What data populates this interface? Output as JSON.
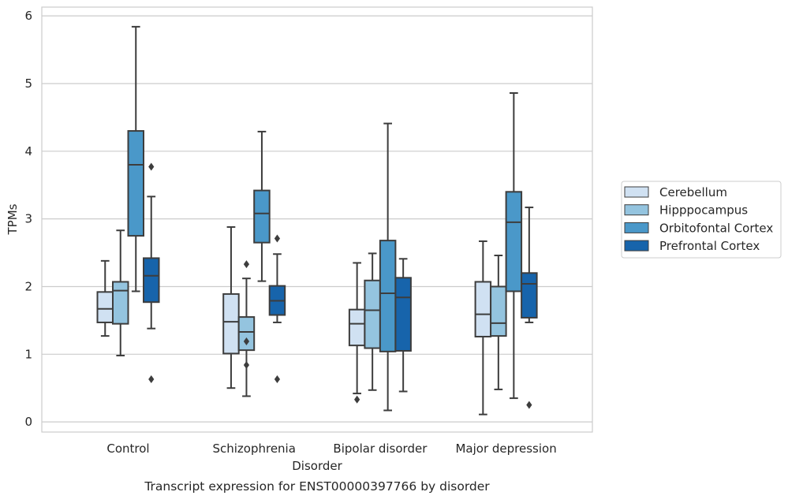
{
  "caption": "Transcript expression for ENST00000397766 by disorder",
  "chart_data": {
    "type": "box",
    "xlabel": "Disorder",
    "ylabel": "TPMs",
    "ylim": [
      -0.15,
      6.13
    ],
    "yticks": [
      0,
      1,
      2,
      3,
      4,
      5,
      6
    ],
    "grid": true,
    "legend_position": "right",
    "categories": [
      "Control",
      "Schizophrenia",
      "Bipolar disorder",
      "Major depression"
    ],
    "series": [
      {
        "name": "Cerebellum",
        "color": "#d0e1f2",
        "boxes": [
          {
            "whisker_low": 1.27,
            "q1": 1.47,
            "median": 1.67,
            "q3": 1.92,
            "whisker_high": 2.38,
            "outliers": []
          },
          {
            "whisker_low": 0.5,
            "q1": 1.01,
            "median": 1.48,
            "q3": 1.89,
            "whisker_high": 2.88,
            "outliers": []
          },
          {
            "whisker_low": 0.42,
            "q1": 1.13,
            "median": 1.45,
            "q3": 1.66,
            "whisker_high": 2.35,
            "outliers": [
              0.33
            ]
          },
          {
            "whisker_low": 0.11,
            "q1": 1.26,
            "median": 1.59,
            "q3": 2.07,
            "whisker_high": 2.67,
            "outliers": []
          }
        ]
      },
      {
        "name": "Hipppocampus",
        "color": "#94c4df",
        "boxes": [
          {
            "whisker_low": 0.98,
            "q1": 1.45,
            "median": 1.94,
            "q3": 2.07,
            "whisker_high": 2.83,
            "outliers": []
          },
          {
            "whisker_low": 0.38,
            "q1": 1.06,
            "median": 1.33,
            "q3": 1.55,
            "whisker_high": 2.12,
            "outliers": [
              2.33,
              1.19,
              0.84
            ]
          },
          {
            "whisker_low": 0.47,
            "q1": 1.09,
            "median": 1.65,
            "q3": 2.09,
            "whisker_high": 2.49,
            "outliers": []
          },
          {
            "whisker_low": 0.48,
            "q1": 1.27,
            "median": 1.46,
            "q3": 2.0,
            "whisker_high": 2.46,
            "outliers": []
          }
        ]
      },
      {
        "name": "Orbitofontal Cortex",
        "color": "#4a98c9",
        "boxes": [
          {
            "whisker_low": 1.93,
            "q1": 2.75,
            "median": 3.8,
            "q3": 4.3,
            "whisker_high": 5.84,
            "outliers": []
          },
          {
            "whisker_low": 2.08,
            "q1": 2.65,
            "median": 3.08,
            "q3": 3.42,
            "whisker_high": 4.29,
            "outliers": []
          },
          {
            "whisker_low": 0.17,
            "q1": 1.04,
            "median": 1.9,
            "q3": 2.68,
            "whisker_high": 4.41,
            "outliers": []
          },
          {
            "whisker_low": 0.35,
            "q1": 1.93,
            "median": 2.95,
            "q3": 3.4,
            "whisker_high": 4.86,
            "outliers": []
          }
        ]
      },
      {
        "name": "Prefrontal Cortex",
        "color": "#1764ab",
        "boxes": [
          {
            "whisker_low": 1.38,
            "q1": 1.77,
            "median": 2.16,
            "q3": 2.42,
            "whisker_high": 3.33,
            "outliers": [
              3.77,
              0.63
            ]
          },
          {
            "whisker_low": 1.47,
            "q1": 1.58,
            "median": 1.79,
            "q3": 2.01,
            "whisker_high": 2.48,
            "outliers": [
              2.71,
              0.63
            ]
          },
          {
            "whisker_low": 0.45,
            "q1": 1.05,
            "median": 1.84,
            "q3": 2.13,
            "whisker_high": 2.41,
            "outliers": []
          },
          {
            "whisker_low": 1.47,
            "q1": 1.54,
            "median": 2.04,
            "q3": 2.2,
            "whisker_high": 3.17,
            "outliers": [
              0.25
            ]
          }
        ]
      }
    ]
  }
}
